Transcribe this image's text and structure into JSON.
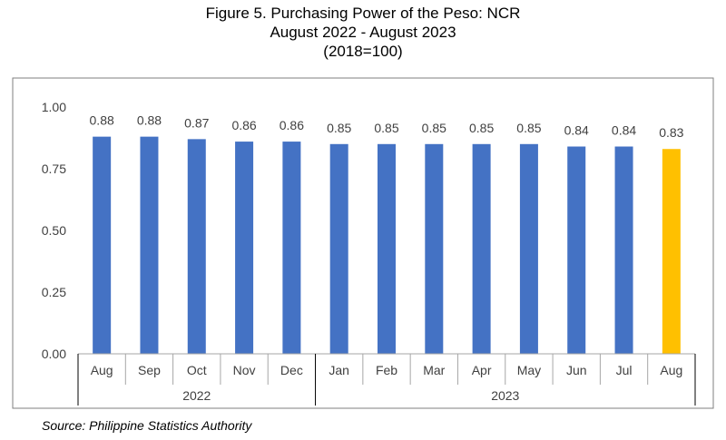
{
  "chart_data": {
    "type": "bar",
    "title": "Figure 5. Purchasing Power of the Peso: NCR",
    "subtitle": "August 2022 - August 2023",
    "subtitle2": "(2018=100)",
    "categories": [
      "Aug",
      "Sep",
      "Oct",
      "Nov",
      "Dec",
      "Jan",
      "Feb",
      "Mar",
      "Apr",
      "May",
      "Jun",
      "Jul",
      "Aug"
    ],
    "values": [
      0.88,
      0.88,
      0.87,
      0.86,
      0.86,
      0.85,
      0.85,
      0.85,
      0.85,
      0.85,
      0.84,
      0.84,
      0.83
    ],
    "data_labels": [
      "0.88",
      "0.88",
      "0.87",
      "0.86",
      "0.86",
      "0.85",
      "0.85",
      "0.85",
      "0.85",
      "0.85",
      "0.84",
      "0.84",
      "0.83"
    ],
    "year_groups": [
      {
        "label": "2022",
        "count": 5
      },
      {
        "label": "2023",
        "count": 8
      }
    ],
    "yticks": [
      "0.00",
      "0.25",
      "0.50",
      "0.75",
      "1.00"
    ],
    "ylim": [
      0,
      1.0
    ],
    "grid": false,
    "bar_color": "#4472C4",
    "highlight_color": "#FFC000",
    "highlight_index": 12,
    "xlabel": "",
    "ylabel": ""
  },
  "source": "Source: Philippine Statistics Authority"
}
